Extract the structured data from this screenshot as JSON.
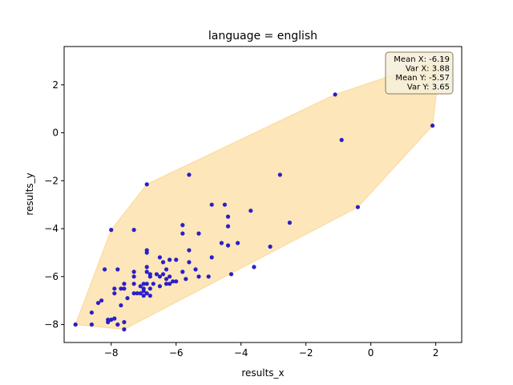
{
  "chart_data": {
    "type": "scatter",
    "title": "language = english",
    "xlabel": "results_x",
    "ylabel": "results_y",
    "xlim": [
      -9.45,
      2.8
    ],
    "ylim": [
      -8.75,
      3.6
    ],
    "xticks": [
      -8,
      -6,
      -4,
      -2,
      0,
      2
    ],
    "yticks": [
      -8,
      -6,
      -4,
      -2,
      0,
      2
    ],
    "grid": false,
    "point_color": "#2a1fc8",
    "hull_color": "#fde2ad",
    "hull_edge_color": "#fbd79a",
    "stats_box": {
      "lines": [
        "Mean X: -6.19",
        "Var X: 3.88",
        "Mean Y: -5.57",
        "Var Y: 3.65"
      ],
      "placement": "top-right",
      "facecolor": "#f5efd9",
      "edgecolor": "#8a7a5c"
    },
    "hull": [
      [
        -9.1,
        -8.0
      ],
      [
        -7.6,
        -8.2
      ],
      [
        -0.4,
        -3.1
      ],
      [
        1.9,
        0.3
      ],
      [
        2.1,
        2.6
      ],
      [
        2.2,
        3.1
      ],
      [
        -1.1,
        1.6
      ],
      [
        -6.9,
        -2.15
      ],
      [
        -8.0,
        -4.05
      ]
    ],
    "points": [
      [
        -9.1,
        -8.0
      ],
      [
        -8.6,
        -8.0
      ],
      [
        -8.6,
        -7.5
      ],
      [
        -8.4,
        -7.1
      ],
      [
        -8.3,
        -7.0
      ],
      [
        -8.2,
        -5.7
      ],
      [
        -8.1,
        -7.9
      ],
      [
        -8.1,
        -7.8
      ],
      [
        -8.0,
        -4.05
      ],
      [
        -8.0,
        -7.8
      ],
      [
        -7.9,
        -7.75
      ],
      [
        -7.9,
        -6.7
      ],
      [
        -7.9,
        -6.5
      ],
      [
        -7.8,
        -8.0
      ],
      [
        -7.8,
        -5.7
      ],
      [
        -7.7,
        -6.5
      ],
      [
        -7.7,
        -7.2
      ],
      [
        -7.6,
        -8.2
      ],
      [
        -7.6,
        -7.9
      ],
      [
        -7.6,
        -6.3
      ],
      [
        -7.6,
        -6.5
      ],
      [
        -7.5,
        -6.9
      ],
      [
        -7.3,
        -4.05
      ],
      [
        -7.3,
        -5.8
      ],
      [
        -7.3,
        -6.0
      ],
      [
        -7.3,
        -6.3
      ],
      [
        -7.3,
        -6.7
      ],
      [
        -7.2,
        -6.7
      ],
      [
        -7.1,
        -6.4
      ],
      [
        -7.1,
        -6.7
      ],
      [
        -7.0,
        -6.3
      ],
      [
        -7.0,
        -6.5
      ],
      [
        -7.0,
        -6.6
      ],
      [
        -7.0,
        -6.8
      ],
      [
        -6.9,
        -2.15
      ],
      [
        -6.9,
        -4.9
      ],
      [
        -6.9,
        -5.0
      ],
      [
        -6.9,
        -5.6
      ],
      [
        -6.9,
        -5.8
      ],
      [
        -6.9,
        -6.3
      ],
      [
        -6.9,
        -6.7
      ],
      [
        -6.8,
        -5.9
      ],
      [
        -6.8,
        -6.0
      ],
      [
        -6.8,
        -6.5
      ],
      [
        -6.8,
        -6.8
      ],
      [
        -6.7,
        -6.3
      ],
      [
        -6.6,
        -5.9
      ],
      [
        -6.5,
        -5.2
      ],
      [
        -6.5,
        -6.0
      ],
      [
        -6.5,
        -6.4
      ],
      [
        -6.4,
        -5.4
      ],
      [
        -6.4,
        -5.9
      ],
      [
        -6.3,
        -5.7
      ],
      [
        -6.3,
        -6.1
      ],
      [
        -6.3,
        -6.3
      ],
      [
        -6.2,
        -5.3
      ],
      [
        -6.2,
        -6.0
      ],
      [
        -6.2,
        -6.3
      ],
      [
        -6.1,
        -6.2
      ],
      [
        -6.0,
        -5.3
      ],
      [
        -6.0,
        -6.2
      ],
      [
        -5.8,
        -3.85
      ],
      [
        -5.8,
        -4.2
      ],
      [
        -5.8,
        -5.8
      ],
      [
        -5.7,
        -6.1
      ],
      [
        -5.6,
        -4.9
      ],
      [
        -5.6,
        -5.4
      ],
      [
        -5.6,
        -1.75
      ],
      [
        -5.4,
        -5.7
      ],
      [
        -5.3,
        -4.2
      ],
      [
        -5.3,
        -6.0
      ],
      [
        -5.0,
        -6.0
      ],
      [
        -4.9,
        -3.0
      ],
      [
        -4.9,
        -5.2
      ],
      [
        -4.6,
        -4.6
      ],
      [
        -4.5,
        -3.0
      ],
      [
        -4.4,
        -3.5
      ],
      [
        -4.4,
        -3.9
      ],
      [
        -4.4,
        -4.7
      ],
      [
        -4.3,
        -5.9
      ],
      [
        -4.1,
        -4.6
      ],
      [
        -3.7,
        -3.25
      ],
      [
        -3.6,
        -5.6
      ],
      [
        -3.1,
        -4.75
      ],
      [
        -2.8,
        -1.75
      ],
      [
        -2.5,
        -3.75
      ],
      [
        -1.1,
        1.6
      ],
      [
        -0.9,
        -0.3
      ],
      [
        -0.4,
        -3.1
      ],
      [
        1.9,
        0.3
      ],
      [
        2.2,
        3.1
      ]
    ]
  }
}
